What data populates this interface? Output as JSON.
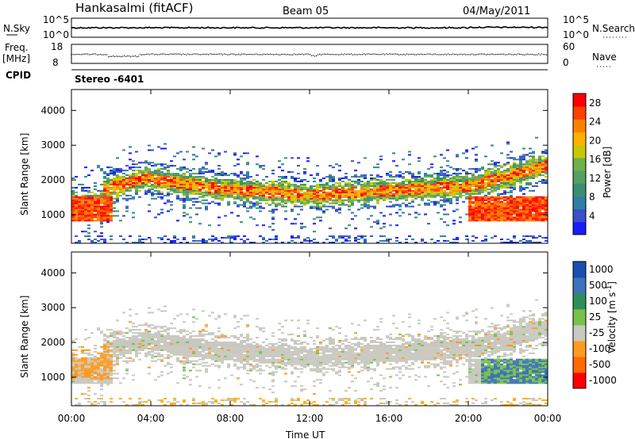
{
  "header": {
    "station": "Hankasalmi (fitACF)",
    "beam": "Beam 05",
    "date": "04/May/2011"
  },
  "noise_panel": {
    "left_label": "N.Sky",
    "right_label": "N.Search",
    "left_ticks": [
      "10^5",
      "10^0"
    ],
    "right_ticks": [
      "10^5",
      "10^0"
    ]
  },
  "freq_panel": {
    "left_label_1": "Freq.",
    "left_label_2": "[MHz]",
    "right_label": "Nave",
    "left_ticks": [
      "18",
      "8"
    ],
    "right_ticks": [
      "60",
      "0"
    ],
    "cpid_label": "CPID",
    "cpid_value": "Stereo -6401"
  },
  "chart_data": [
    {
      "type": "heatmap",
      "title": "",
      "xlabel": "Time UT",
      "ylabel": "Slant Range [km]",
      "x_ticks": [
        "00:00",
        "04:00",
        "08:00",
        "12:00",
        "16:00",
        "20:00",
        "00:00"
      ],
      "x_range_hours": [
        0,
        24
      ],
      "y_ticks": [
        "1000",
        "2000",
        "3000",
        "4000"
      ],
      "ylim": [
        180,
        4600
      ],
      "colorbar": {
        "label": "Power [dB]",
        "ticks": [
          "4",
          "8",
          "12",
          "16",
          "20",
          "24",
          "28"
        ],
        "range": [
          0,
          30
        ],
        "colors": [
          "#1a1aff",
          "#3a4fc8",
          "#2f7fa8",
          "#3a8f70",
          "#55a060",
          "#6fb04a",
          "#c8c800",
          "#ffb000",
          "#ff8000",
          "#ff4000",
          "#ff0000"
        ]
      },
      "scatter_echoes": [
        {
          "hours": [
            0,
            24
          ],
          "range_km": [
            800,
            1300
          ],
          "value": "mid-high"
        },
        {
          "hours": [
            0,
            24
          ],
          "range_km": [
            1300,
            2200
          ],
          "value": "mid"
        },
        {
          "hours": [
            0,
            24
          ],
          "range_km": [
            2200,
            3000
          ],
          "value": "low"
        }
      ]
    },
    {
      "type": "heatmap",
      "title": "",
      "xlabel": "Time UT",
      "ylabel": "Slant Range [km]",
      "x_ticks": [
        "00:00",
        "04:00",
        "08:00",
        "12:00",
        "16:00",
        "20:00",
        "00:00"
      ],
      "x_range_hours": [
        0,
        24
      ],
      "y_ticks": [
        "1000",
        "2000",
        "3000",
        "4000"
      ],
      "ylim": [
        180,
        4600
      ],
      "colorbar": {
        "label": "Velocity [m s^-1]",
        "ticks": [
          "1000",
          "500",
          "100",
          "25",
          "-25",
          "-100",
          "-500",
          "-1000"
        ],
        "colors": [
          "#1a4fb0",
          "#3d73b8",
          "#2e8f5a",
          "#79c24a",
          "#c8c8c0",
          "#ff9a20",
          "#ff6a00",
          "#ff0000"
        ]
      }
    }
  ]
}
